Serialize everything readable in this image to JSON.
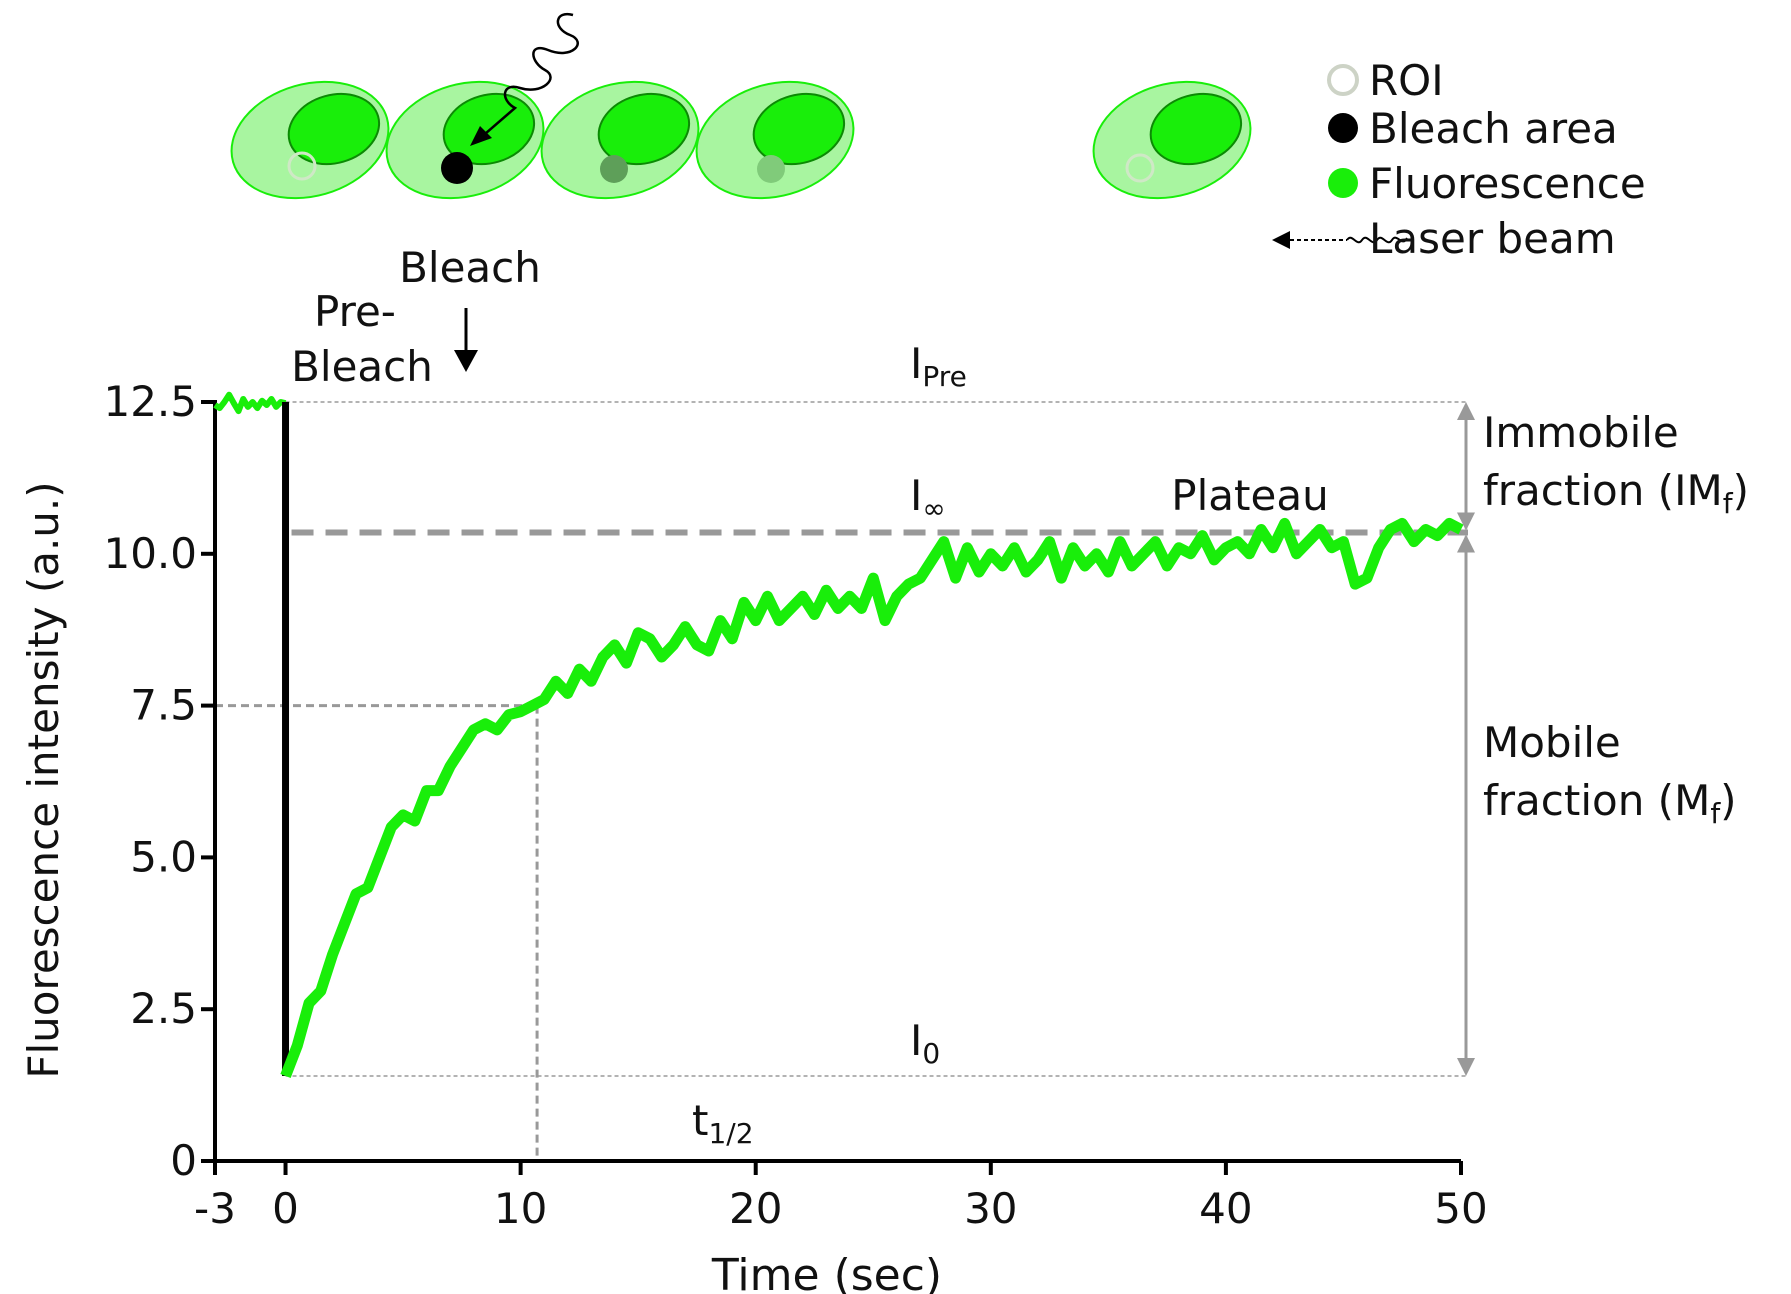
{
  "legend": {
    "roi": "ROI",
    "bleach_area": "Bleach area",
    "fluorescence": "Fluorescence",
    "laser_beam": "Laser beam"
  },
  "annotations": {
    "pre_bleach_1": "Pre-",
    "pre_bleach_2": "Bleach",
    "bleach": "Bleach",
    "i_pre_main": "I",
    "i_pre_sub": "Pre",
    "i_inf_main": "I",
    "i_inf_sub": "∞",
    "i_zero_main": "I",
    "i_zero_sub": "0",
    "plateau": "Plateau",
    "t_half_main": "t",
    "t_half_sub": "1/2",
    "immobile_1": "Immobile",
    "immobile_2a": "fraction (IM",
    "immobile_sub": "f",
    "immobile_2b": ")",
    "mobile_1": "Mobile",
    "mobile_2a": "fraction (M",
    "mobile_sub": "f",
    "mobile_2b": ")"
  },
  "colors": {
    "fluorescence": "#19ee0a",
    "cell_fill": "#a8f5a0",
    "nucleus": "#19ee0a",
    "bleach_spot": "#000000",
    "guide": "#999999",
    "axis": "#000000"
  },
  "chart_data": {
    "type": "line",
    "xlabel": "Time (sec)",
    "ylabel": "Fluorescence intensity (a.u.)",
    "xlim": [
      -3,
      50
    ],
    "ylim": [
      0,
      12.5
    ],
    "xticks": [
      -3,
      0,
      10,
      20,
      30,
      40,
      50
    ],
    "xtick_labels": [
      "-3",
      "0",
      "10",
      "20",
      "30",
      "40",
      "50"
    ],
    "yticks": [
      0,
      2.5,
      5.0,
      7.5,
      10.0,
      12.5
    ],
    "ytick_labels": [
      "0",
      "2.5",
      "5.0",
      "7.5",
      "10.0",
      "12.5"
    ],
    "grid": false,
    "levels": {
      "i_pre": 12.5,
      "i_inf": 10.35,
      "i_zero": 1.4,
      "half": 7.5,
      "t_half": 10.7
    },
    "pre_bleach_series": {
      "x": [
        -3.0,
        -2.8,
        -2.6,
        -2.4,
        -2.2,
        -2.0,
        -1.8,
        -1.6,
        -1.4,
        -1.2,
        -1.0,
        -0.8,
        -0.6,
        -0.4,
        -0.2,
        0.0
      ],
      "y": [
        12.45,
        12.4,
        12.5,
        12.62,
        12.48,
        12.35,
        12.55,
        12.42,
        12.5,
        12.4,
        12.52,
        12.45,
        12.55,
        12.42,
        12.5,
        12.48
      ]
    },
    "bleach_drop": {
      "x": 0,
      "y_from": 12.5,
      "y_to": 1.4
    },
    "recovery_series": {
      "x": [
        0.0,
        0.5,
        1.0,
        1.5,
        2.0,
        2.5,
        3.0,
        3.5,
        4.0,
        4.5,
        5.0,
        5.5,
        6.0,
        6.5,
        7.0,
        7.5,
        8.0,
        8.5,
        9.0,
        9.5,
        10.0,
        10.5,
        11.0,
        11.5,
        12.0,
        12.5,
        13.0,
        13.5,
        14.0,
        14.5,
        15.0,
        15.5,
        16.0,
        16.5,
        17.0,
        17.5,
        18.0,
        18.5,
        19.0,
        19.5,
        20.0,
        20.5,
        21.0,
        21.5,
        22.0,
        22.5,
        23.0,
        23.5,
        24.0,
        24.5,
        25.0,
        25.5,
        26.0,
        26.5,
        27.0,
        27.5,
        28.0,
        28.5,
        29.0,
        29.5,
        30.0,
        30.5,
        31.0,
        31.5,
        32.0,
        32.5,
        33.0,
        33.5,
        34.0,
        34.5,
        35.0,
        35.5,
        36.0,
        36.5,
        37.0,
        37.5,
        38.0,
        38.5,
        39.0,
        39.5,
        40.0,
        40.5,
        41.0,
        41.5,
        42.0,
        42.5,
        43.0,
        43.5,
        44.0,
        44.5,
        45.0,
        45.5,
        46.0,
        46.5,
        47.0,
        47.5,
        48.0,
        48.5,
        49.0,
        49.5,
        50.0
      ],
      "y": [
        1.4,
        1.9,
        2.6,
        2.8,
        3.4,
        3.9,
        4.4,
        4.5,
        5.0,
        5.5,
        5.7,
        5.6,
        6.1,
        6.1,
        6.5,
        6.8,
        7.1,
        7.2,
        7.1,
        7.35,
        7.4,
        7.5,
        7.6,
        7.9,
        7.7,
        8.1,
        7.9,
        8.3,
        8.5,
        8.2,
        8.7,
        8.6,
        8.3,
        8.5,
        8.8,
        8.5,
        8.4,
        8.9,
        8.6,
        9.2,
        8.9,
        9.3,
        8.9,
        9.1,
        9.3,
        9.0,
        9.4,
        9.1,
        9.3,
        9.1,
        9.6,
        8.9,
        9.3,
        9.5,
        9.6,
        9.9,
        10.2,
        9.6,
        10.1,
        9.7,
        10.0,
        9.8,
        10.1,
        9.7,
        9.9,
        10.2,
        9.6,
        10.1,
        9.8,
        10.0,
        9.7,
        10.2,
        9.8,
        10.0,
        10.2,
        9.8,
        10.1,
        10.0,
        10.3,
        9.9,
        10.1,
        10.2,
        10.0,
        10.4,
        10.1,
        10.5,
        10.0,
        10.2,
        10.4,
        10.1,
        10.2,
        9.5,
        9.6,
        10.1,
        10.4,
        10.5,
        10.2,
        10.4,
        10.3,
        10.5,
        10.4
      ]
    }
  }
}
